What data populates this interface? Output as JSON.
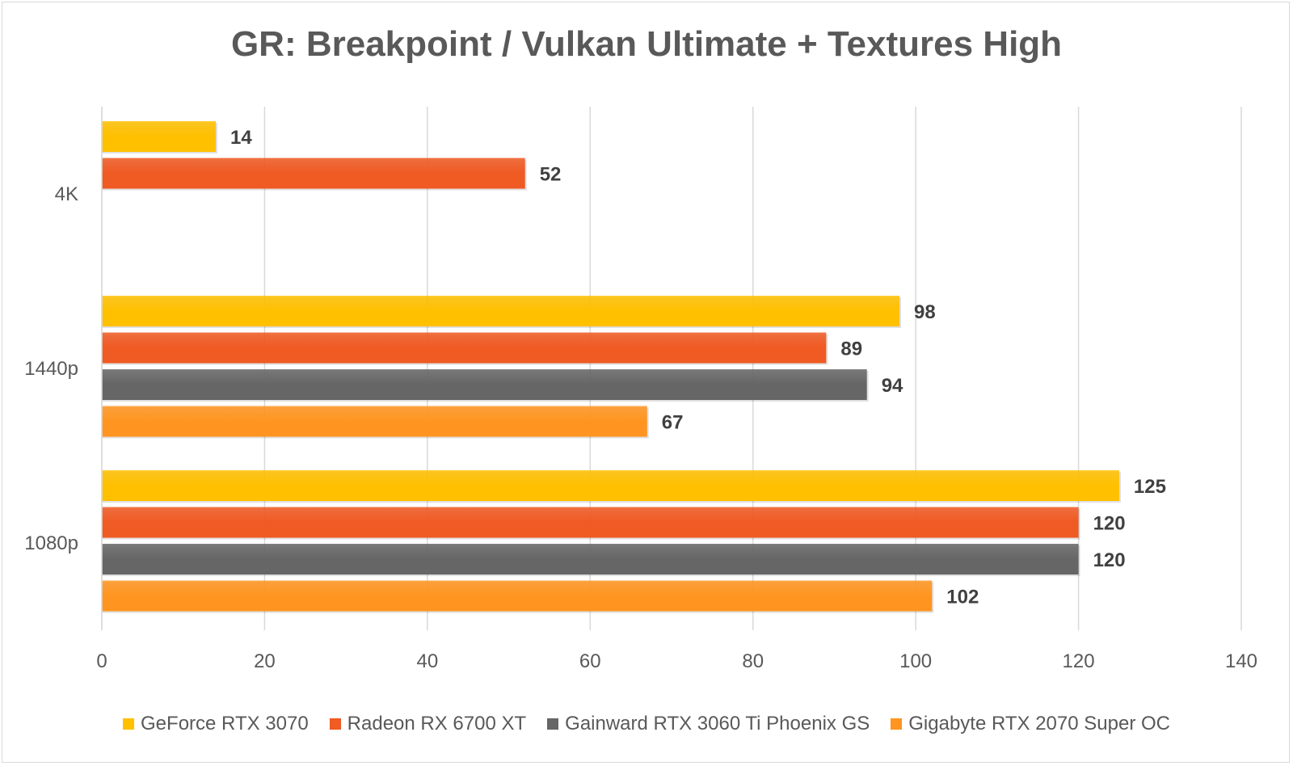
{
  "chart_data": {
    "type": "bar",
    "orientation": "horizontal",
    "title": "GR: Breakpoint / Vulkan Ultimate + Textures High",
    "xlabel": "",
    "ylabel": "",
    "xlim": [
      0,
      140
    ],
    "xticks": [
      0,
      20,
      40,
      60,
      80,
      100,
      120,
      140
    ],
    "grid": "vertical",
    "legend_position": "bottom",
    "categories": [
      "4K",
      "1440p",
      "1080p"
    ],
    "series": [
      {
        "name": "GeForce RTX 3070",
        "color": "#ffc000",
        "values": [
          14,
          98,
          125
        ]
      },
      {
        "name": "Radeon RX 6700 XT",
        "color": "#f05a23",
        "values": [
          52,
          89,
          120
        ]
      },
      {
        "name": "Gainward RTX 3060 Ti Phoenix GS",
        "color": "#666666",
        "values": [
          null,
          94,
          120
        ]
      },
      {
        "name": "Gigabyte RTX 2070 Super OC",
        "color": "#ff9520",
        "values": [
          null,
          67,
          102
        ]
      }
    ]
  }
}
